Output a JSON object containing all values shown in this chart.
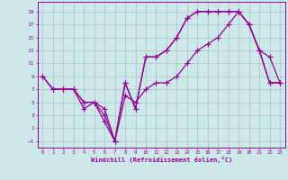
{
  "background_color": "#cce8e8",
  "grid_color": "#aacccc",
  "line_color": "#990099",
  "marker": "+",
  "xlabel": "Windchill (Refroidissement éolien,°C)",
  "xlim": [
    -0.5,
    23.5
  ],
  "ylim": [
    -2,
    20.5
  ],
  "xticks": [
    0,
    1,
    2,
    3,
    4,
    5,
    6,
    7,
    8,
    9,
    10,
    11,
    12,
    13,
    14,
    15,
    16,
    17,
    18,
    19,
    20,
    21,
    22,
    23
  ],
  "yticks": [
    -1,
    1,
    3,
    5,
    7,
    9,
    11,
    13,
    15,
    17,
    19
  ],
  "line1_x": [
    0,
    1,
    2,
    3,
    4,
    5,
    6,
    7,
    8,
    9,
    10,
    11,
    12,
    13,
    14,
    15,
    16,
    17,
    18,
    19,
    20,
    21,
    22,
    23
  ],
  "line1_y": [
    9,
    7,
    7,
    7,
    4,
    5,
    2,
    -1,
    8,
    4,
    12,
    12,
    13,
    15,
    18,
    19,
    19,
    19,
    19,
    19,
    17,
    13,
    8,
    8
  ],
  "line2_x": [
    0,
    1,
    2,
    3,
    4,
    5,
    6,
    7,
    8,
    9,
    10,
    11,
    12,
    13,
    14,
    15,
    16,
    17,
    18,
    19,
    20,
    21,
    22,
    23
  ],
  "line2_y": [
    9,
    7,
    7,
    7,
    5,
    5,
    3,
    -1,
    8,
    4,
    12,
    12,
    13,
    15,
    18,
    19,
    19,
    19,
    19,
    19,
    17,
    13,
    8,
    8
  ],
  "line3_x": [
    1,
    2,
    3,
    4,
    5,
    6,
    7,
    8,
    9,
    10,
    11,
    12,
    13,
    14,
    15,
    16,
    17,
    18,
    19,
    20,
    21,
    22,
    23
  ],
  "line3_y": [
    7,
    7,
    7,
    5,
    5,
    4,
    -1,
    6,
    5,
    7,
    8,
    8,
    9,
    11,
    13,
    14,
    15,
    17,
    19,
    17,
    13,
    12,
    8
  ]
}
